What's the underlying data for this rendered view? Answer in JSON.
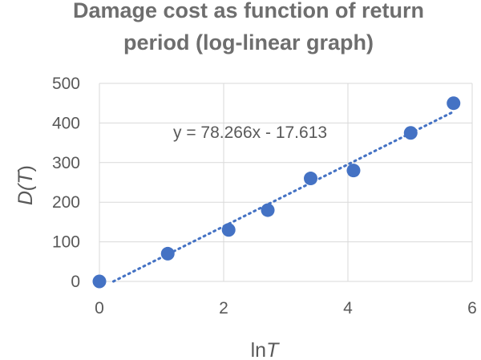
{
  "chart_data": {
    "type": "scatter",
    "title_lines": [
      "Damage cost as function of return",
      "period (log-linear graph)"
    ],
    "xlabel": {
      "prefix": "ln",
      "var": "T"
    },
    "ylabel": {
      "prefix": "D(",
      "var": "T",
      "suffix": ")"
    },
    "xlim": [
      0,
      6
    ],
    "ylim": [
      0,
      500
    ],
    "xticks": [
      "0",
      "2",
      "4",
      "6"
    ],
    "yticks": [
      "0",
      "100",
      "200",
      "300",
      "400",
      "500"
    ],
    "xtick_values": [
      0,
      2,
      4,
      6
    ],
    "ytick_values": [
      0,
      100,
      200,
      300,
      400,
      500
    ],
    "grid": true,
    "points": [
      {
        "x": 0,
        "y": 0
      },
      {
        "x": 1.1,
        "y": 70
      },
      {
        "x": 2.08,
        "y": 130
      },
      {
        "x": 2.71,
        "y": 180
      },
      {
        "x": 3.4,
        "y": 260
      },
      {
        "x": 4.09,
        "y": 280
      },
      {
        "x": 5.01,
        "y": 375
      },
      {
        "x": 5.7,
        "y": 450
      }
    ],
    "trendline": {
      "slope": 78.266,
      "intercept": -17.613,
      "equation": "y = 78.266x - 17.613",
      "style": "dotted"
    },
    "colors": {
      "marker": "#4472c4",
      "trendline": "#4472c4",
      "grid": "#d9d9d9",
      "text": "#595959",
      "title": "#6e6e6e"
    }
  }
}
